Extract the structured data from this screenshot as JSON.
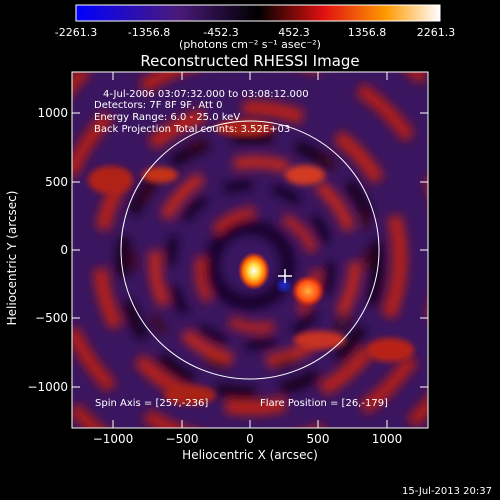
{
  "title": "Reconstructed RHESSI Image",
  "colorbar": {
    "tick_labels": [
      "-2261.3",
      "-1356.8",
      "-452.3",
      "452.3",
      "1356.8",
      "2261.3"
    ],
    "units_label": "(photons cm⁻² s⁻¹ asec⁻²)",
    "range": [
      -2261.3,
      2261.3
    ]
  },
  "axes": {
    "xlabel": "Heliocentric X (arcsec)",
    "ylabel": "Heliocentric Y (arcsec)",
    "x_ticks": [
      "−1000",
      "−500",
      "0",
      "500",
      "1000"
    ],
    "y_ticks": [
      "1000",
      "500",
      "0",
      "−500",
      "−1000"
    ],
    "xlim": [
      -1300,
      1300
    ],
    "ylim": [
      -1300,
      1300
    ]
  },
  "info": {
    "time_range": "4-Jul-2006 03:07:32.000 to 03:08:12.000",
    "detectors": "Detectors: 7F 8F 9F, Att 0",
    "energy": "Energy Range: 6.0 - 25.0 keV",
    "method": "Back Projection     Total counts: 3.52E+03"
  },
  "spin_axis": "Spin Axis = [257,-236]",
  "flare_position": "Flare Position = [26,-179]",
  "footer_date": "15-Jul-2013 20:37",
  "colors": {
    "background": "#000000",
    "foreground": "#ffffff"
  },
  "chart_data": {
    "type": "heatmap",
    "title": "Reconstructed RHESSI Image",
    "xlabel": "Heliocentric X (arcsec)",
    "ylabel": "Heliocentric Y (arcsec)",
    "xlim": [
      -1300,
      1300
    ],
    "ylim": [
      -1300,
      1300
    ],
    "value_range": [
      -2261.3,
      2261.3
    ],
    "solar_limb_radius_arcsec": 945,
    "peaks": [
      {
        "x": 30,
        "y": -160,
        "value": 2261.3
      },
      {
        "x": 420,
        "y": -300,
        "value": 1500
      }
    ],
    "markers": [
      {
        "type": "cross",
        "x": 257,
        "y": -236
      }
    ]
  }
}
